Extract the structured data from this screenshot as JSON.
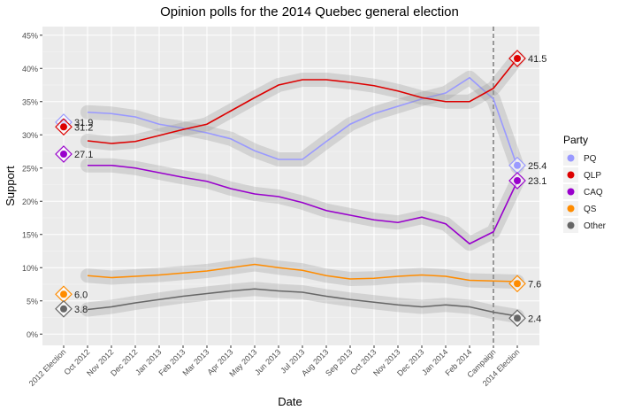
{
  "chart_data": {
    "type": "line",
    "title": "Opinion polls for the 2014 Quebec general election",
    "x_label": "Date",
    "y_label": "Support",
    "legend_title": "Party",
    "legend_position": "right",
    "grid": true,
    "categories": [
      "2012 Election",
      "Oct 2012",
      "Nov 2012",
      "Dec 2012",
      "Jan 2013",
      "Feb 2013",
      "Mar 2013",
      "Apr 2013",
      "May 2013",
      "Jun 2013",
      "Jul 2013",
      "Aug 2013",
      "Sep 2013",
      "Oct 2013",
      "Nov 2013",
      "Dec 2013",
      "Jan 2014",
      "Feb 2014",
      "Campaign",
      "2014 Election"
    ],
    "reference_line": {
      "category": 18,
      "style": "dashed"
    },
    "ylim": [
      -1.7,
      46.3
    ],
    "yticks": [
      {
        "value": 0,
        "label": "0%"
      },
      {
        "value": 5,
        "label": "5%"
      },
      {
        "value": 10,
        "label": "10%"
      },
      {
        "value": 15,
        "label": "15%"
      },
      {
        "value": 20,
        "label": "20%"
      },
      {
        "value": 25,
        "label": "25%"
      },
      {
        "value": 30,
        "label": "30%"
      },
      {
        "value": 35,
        "label": "35%"
      },
      {
        "value": 40,
        "label": "40%"
      },
      {
        "value": 45,
        "label": "45%"
      }
    ],
    "series": [
      {
        "name": "PQ",
        "color": "#9999ff",
        "start": 31.9,
        "end": 25.4,
        "values": [
          null,
          33.4,
          33.2,
          32.7,
          31.6,
          31,
          30.3,
          29.4,
          27.6,
          26.3,
          26.3,
          29,
          31.6,
          33.2,
          34.3,
          35.4,
          36.3,
          38.6,
          35.4,
          25.2
        ]
      },
      {
        "name": "QLP",
        "color": "#dd0000",
        "start": 31.2,
        "end": 41.5,
        "values": [
          null,
          29.1,
          28.7,
          29,
          29.9,
          30.8,
          31.6,
          33.6,
          35.6,
          37.5,
          38.3,
          38.3,
          37.9,
          37.4,
          36.6,
          35.6,
          35,
          35,
          37,
          41.5
        ]
      },
      {
        "name": "CAQ",
        "color": "#9900cc",
        "start": 27.1,
        "end": 23.1,
        "values": [
          null,
          25.4,
          25.4,
          25,
          24.3,
          23.6,
          23,
          21.9,
          21.1,
          20.7,
          19.8,
          18.6,
          17.9,
          17.2,
          16.8,
          17.6,
          16.6,
          13.6,
          15.4,
          23
        ]
      },
      {
        "name": "QS",
        "color": "#ff8c00",
        "start": {
          "value": 6,
          "label": "6.0"
        },
        "end": 7.6,
        "values": [
          null,
          8.8,
          8.5,
          8.7,
          8.9,
          9.2,
          9.5,
          10,
          10.5,
          10,
          9.6,
          8.8,
          8.3,
          8.4,
          8.7,
          8.9,
          8.7,
          8.1,
          8,
          7.9
        ]
      },
      {
        "name": "Other",
        "color": "#666666",
        "start": 3.8,
        "end": 2.4,
        "values": [
          null,
          3.7,
          4.1,
          4.7,
          5.2,
          5.7,
          6.1,
          6.5,
          6.8,
          6.5,
          6.3,
          5.7,
          5.2,
          4.8,
          4.4,
          4.1,
          4.4,
          4.1,
          3.3,
          2.7
        ]
      }
    ]
  }
}
